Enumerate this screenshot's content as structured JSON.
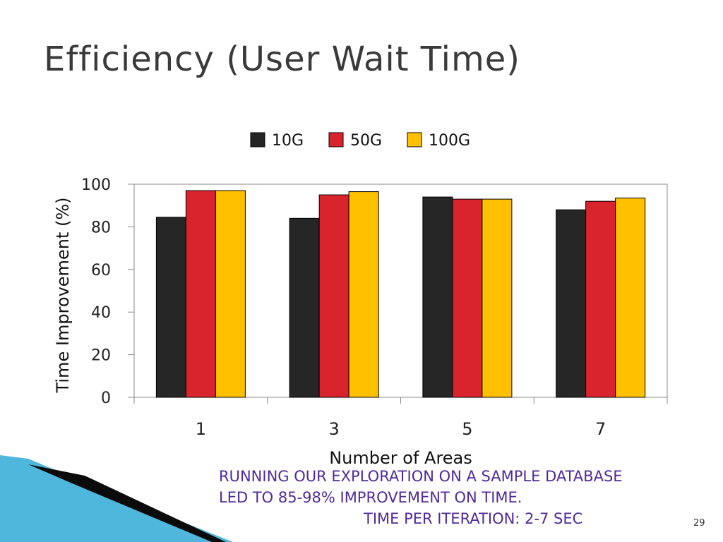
{
  "slide": {
    "title": "Efficiency (User Wait Time)",
    "caption_lines": [
      "Running our exploration on a sample database",
      "led to 85-98% improvement on time.",
      "Time per iteration: 2-7 sec"
    ],
    "page_number": "29"
  },
  "colors": {
    "title": "#3a3a3a",
    "caption": "#4f2a9a",
    "series": [
      "#262626",
      "#d9232d",
      "#ffc000"
    ],
    "axis": "#888888",
    "decor_dark": "#0b0b0b",
    "decor_light": "#4fb6dc"
  },
  "chart_data": {
    "type": "bar",
    "categories": [
      "1",
      "3",
      "5",
      "7"
    ],
    "series": [
      {
        "name": "10G",
        "values": [
          84.5,
          84,
          94,
          88
        ]
      },
      {
        "name": "50G",
        "values": [
          97,
          95,
          93,
          92
        ]
      },
      {
        "name": "100G",
        "values": [
          97,
          96.5,
          93,
          93.5
        ]
      }
    ],
    "xlabel": "Number of Areas",
    "ylabel": "Time Improvement (%)",
    "ylim": [
      0,
      100
    ],
    "yticks": [
      "0",
      "20",
      "40",
      "60",
      "80",
      "100"
    ],
    "legend_position": "top",
    "grid": false
  }
}
